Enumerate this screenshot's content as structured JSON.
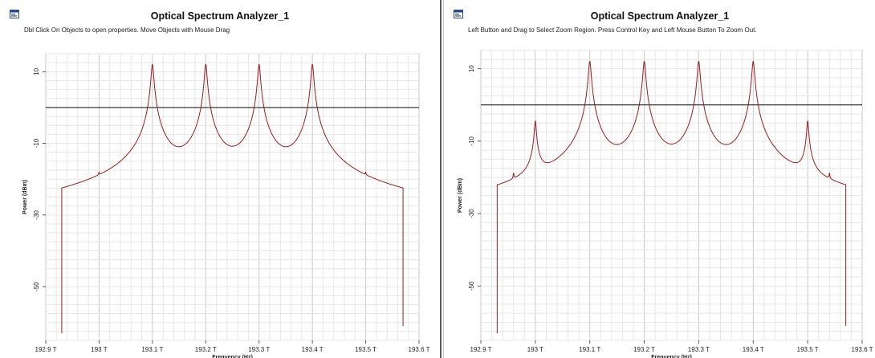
{
  "panels": [
    {
      "title": "Optical Spectrum Analyzer_1",
      "hint": "Dbl Click On Objects to open properties.  Move Objects with Mouse Drag",
      "icon": "window-app-icon",
      "chart_data": {
        "type": "line",
        "xlabel": "Frequency (Hz)",
        "ylabel": "Power (dBm)",
        "xlim": [
          192.9,
          193.6
        ],
        "ylim": [
          -65,
          15
        ],
        "x_ticks": [
          "192.9 T",
          "193 T",
          "193.1 T",
          "193.2 T",
          "193.3 T",
          "193.4 T",
          "193.5 T",
          "193.6 T"
        ],
        "y_ticks": [
          "10",
          "-10",
          "-30",
          "-50"
        ],
        "y_tick_values": [
          10,
          -10,
          -30,
          -50
        ],
        "grid": true,
        "reference_line": 0,
        "noise_floor": -46.5,
        "x_range": [
          192.93,
          193.57
        ],
        "series": [
          {
            "color": "#9b1b1b",
            "peaks": [
              {
                "x": 193.1,
                "y": 12,
                "shoulder": -8,
                "width": 0.009,
                "skirt": 0.02
              },
              {
                "x": 193.2,
                "y": 12,
                "shoulder": -8,
                "width": 0.009,
                "skirt": 0.02
              },
              {
                "x": 193.3,
                "y": 12,
                "shoulder": -8,
                "width": 0.009,
                "skirt": 0.02
              },
              {
                "x": 193.4,
                "y": 12,
                "shoulder": -8,
                "width": 0.009,
                "skirt": 0.02
              },
              {
                "x": 193.0,
                "y": -26,
                "width": 0.0025
              },
              {
                "x": 193.5,
                "y": -26,
                "width": 0.0025
              },
              {
                "x": 193.54,
                "y": -42,
                "width": 0.002
              },
              {
                "x": 192.96,
                "y": -44,
                "width": 0.002
              }
            ]
          }
        ]
      }
    },
    {
      "title": "Optical Spectrum Analyzer_1",
      "hint": "Left Button and Drag to Select Zoom Region. Press Control Key and Left Mouse Button To Zoom Out.",
      "icon": "window-app-icon",
      "chart_data": {
        "type": "line",
        "xlabel": "Frequency (Hz)",
        "ylabel": "Power (dBm)",
        "xlim": [
          192.9,
          193.6
        ],
        "ylim": [
          -65,
          15
        ],
        "x_ticks": [
          "192.9 T",
          "193 T",
          "193.1 T",
          "193.2 T",
          "193.3 T",
          "193.4 T",
          "193.5 T",
          "193.6 T"
        ],
        "y_ticks": [
          "10",
          "-10",
          "-30",
          "-50"
        ],
        "y_tick_values": [
          10,
          -10,
          -30,
          -50
        ],
        "grid": true,
        "reference_line": 0,
        "noise_floor": -46.5,
        "x_range": [
          192.93,
          193.57
        ],
        "series": [
          {
            "color": "#9b1b1b",
            "peaks": [
              {
                "x": 193.1,
                "y": 12,
                "shoulder": -8,
                "width": 0.009,
                "skirt": 0.02
              },
              {
                "x": 193.2,
                "y": 12,
                "shoulder": -8,
                "width": 0.009,
                "skirt": 0.02
              },
              {
                "x": 193.3,
                "y": 12,
                "shoulder": -8,
                "width": 0.009,
                "skirt": 0.02
              },
              {
                "x": 193.4,
                "y": 12,
                "shoulder": -8,
                "width": 0.009,
                "skirt": 0.02
              },
              {
                "x": 193.0,
                "y": -5,
                "shoulder": -15,
                "width": 0.007,
                "skirt": 0.016
              },
              {
                "x": 193.5,
                "y": -5,
                "shoulder": -15,
                "width": 0.007,
                "skirt": 0.016
              },
              {
                "x": 192.96,
                "y": -24,
                "width": 0.003
              },
              {
                "x": 193.54,
                "y": -24,
                "width": 0.003
              },
              {
                "x": 193.06,
                "y": -35,
                "width": 0.0025
              },
              {
                "x": 193.14,
                "y": -36,
                "width": 0.0025
              },
              {
                "x": 193.16,
                "y": -33,
                "width": 0.0025
              },
              {
                "x": 193.24,
                "y": -38,
                "width": 0.0025
              },
              {
                "x": 193.26,
                "y": -36,
                "width": 0.0025
              },
              {
                "x": 193.34,
                "y": -36,
                "width": 0.0025
              },
              {
                "x": 193.36,
                "y": -40,
                "width": 0.0025
              },
              {
                "x": 193.44,
                "y": -24,
                "width": 0.003
              },
              {
                "x": 193.46,
                "y": -42,
                "width": 0.002
              },
              {
                "x": 192.98,
                "y": -43,
                "width": 0.002
              }
            ]
          }
        ]
      }
    }
  ]
}
